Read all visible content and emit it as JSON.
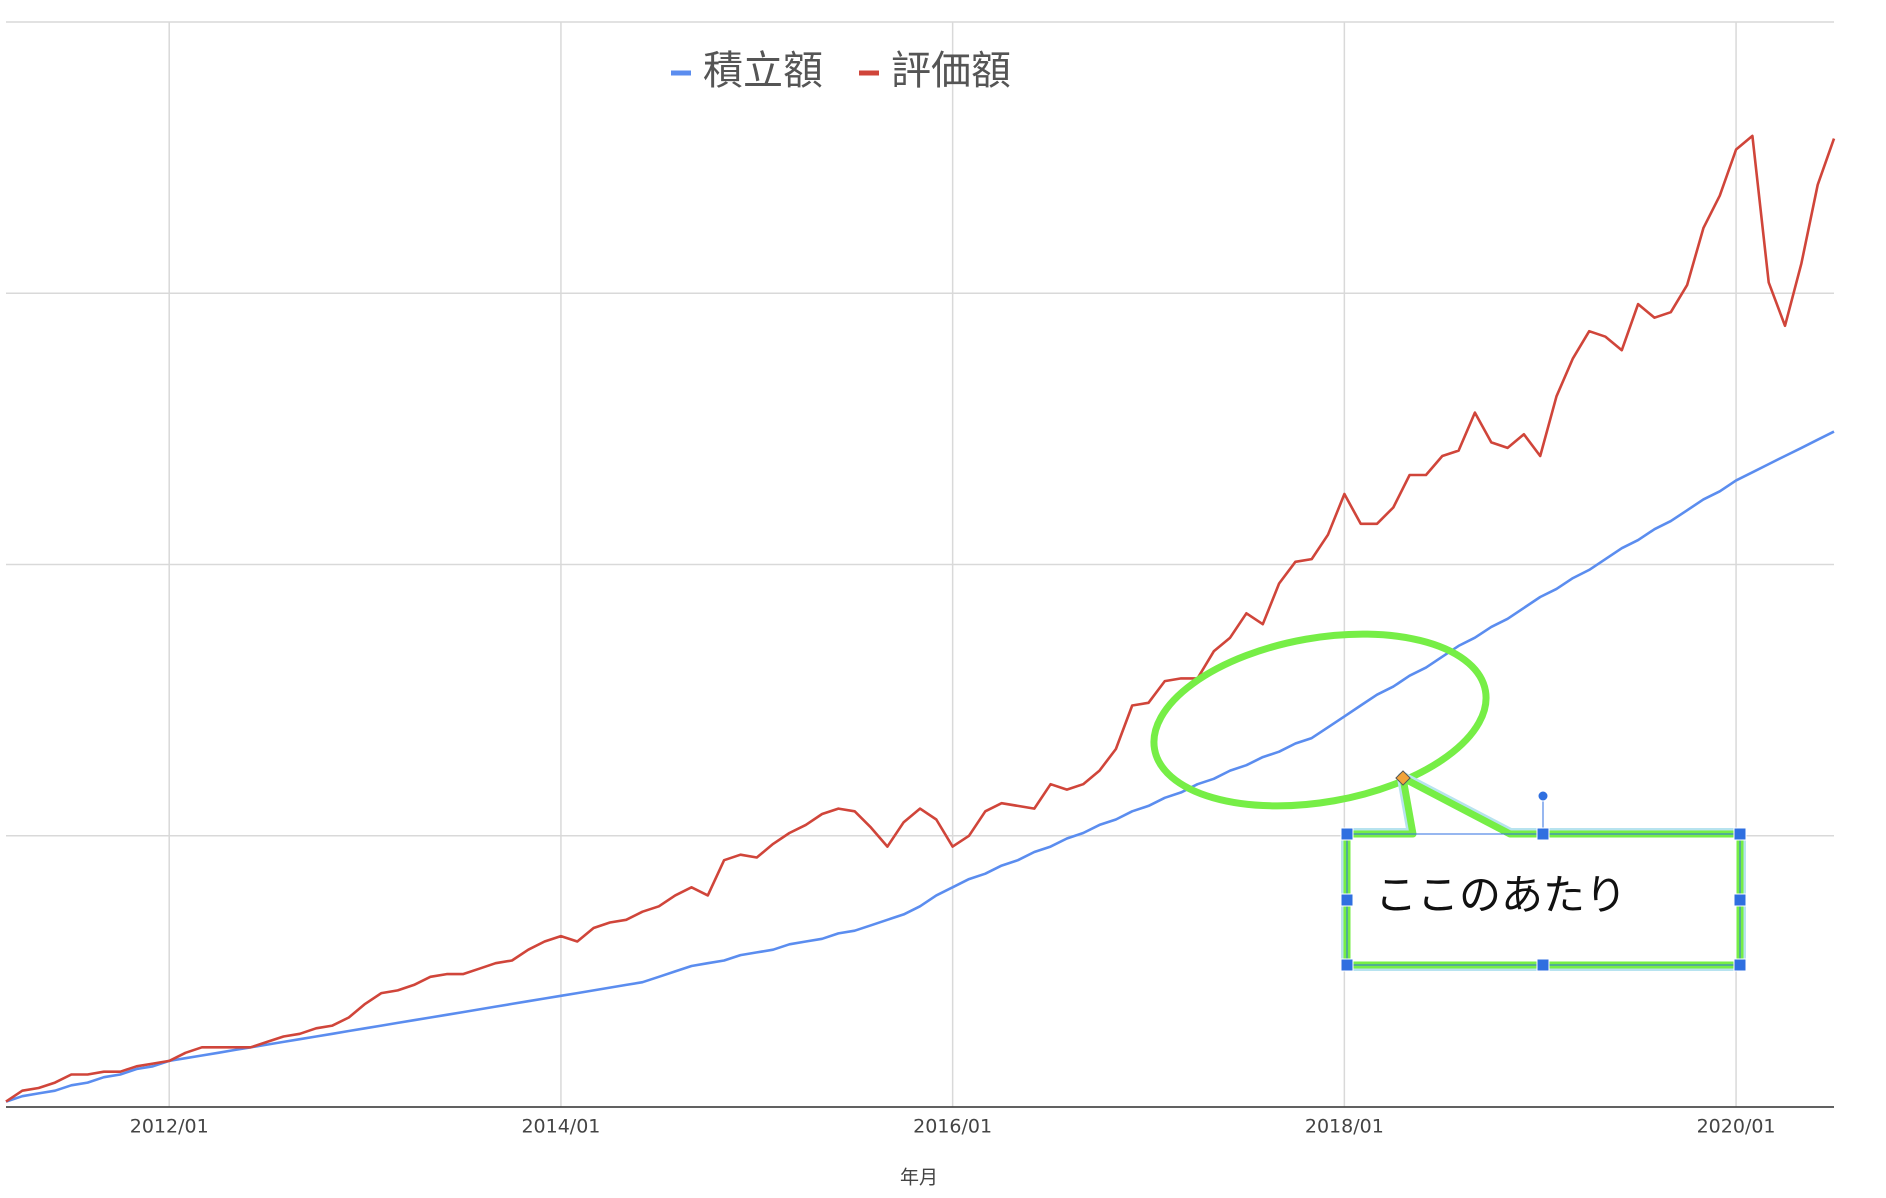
{
  "chart_data": {
    "type": "line",
    "x_label": "年月",
    "categories": [
      null,
      null,
      null,
      null,
      null,
      null,
      null,
      null,
      null,
      null,
      "2012/01",
      null,
      null,
      null,
      null,
      null,
      null,
      null,
      null,
      null,
      null,
      null,
      null,
      null,
      null,
      null,
      null,
      null,
      null,
      null,
      null,
      null,
      null,
      null,
      "2014/01",
      null,
      null,
      null,
      null,
      null,
      null,
      null,
      null,
      null,
      null,
      null,
      null,
      null,
      null,
      null,
      null,
      null,
      null,
      null,
      null,
      null,
      null,
      null,
      "2016/01",
      null,
      null,
      null,
      null,
      null,
      null,
      null,
      null,
      null,
      null,
      null,
      null,
      null,
      null,
      null,
      null,
      null,
      null,
      null,
      null,
      null,
      null,
      null,
      "2018/01",
      null,
      null,
      null,
      null,
      null,
      null,
      null,
      null,
      null,
      null,
      null,
      null,
      null,
      null,
      null,
      null,
      null,
      null,
      null,
      null,
      null,
      null,
      null,
      "2020/01",
      null,
      null,
      null,
      null,
      null,
      null
    ],
    "series": [
      {
        "name": "積立額",
        "color": "#5b8def",
        "values": [
          0.02,
          0.04,
          0.05,
          0.06,
          0.08,
          0.09,
          0.11,
          0.12,
          0.14,
          0.15,
          0.17,
          0.18,
          0.19,
          0.2,
          0.21,
          0.22,
          0.23,
          0.24,
          0.25,
          0.26,
          0.27,
          0.28,
          0.29,
          0.3,
          0.31,
          0.32,
          0.33,
          0.34,
          0.35,
          0.36,
          0.37,
          0.38,
          0.39,
          0.4,
          0.41,
          0.42,
          0.43,
          0.44,
          0.45,
          0.46,
          0.48,
          0.5,
          0.52,
          0.53,
          0.54,
          0.56,
          0.57,
          0.58,
          0.6,
          0.61,
          0.62,
          0.64,
          0.65,
          0.67,
          0.69,
          0.71,
          0.74,
          0.78,
          0.81,
          0.84,
          0.86,
          0.89,
          0.91,
          0.94,
          0.96,
          0.99,
          1.01,
          1.04,
          1.06,
          1.09,
          1.11,
          1.14,
          1.16,
          1.19,
          1.21,
          1.24,
          1.26,
          1.29,
          1.31,
          1.34,
          1.36,
          1.4,
          1.44,
          1.48,
          1.52,
          1.55,
          1.59,
          1.62,
          1.66,
          1.7,
          1.73,
          1.77,
          1.8,
          1.84,
          1.88,
          1.91,
          1.95,
          1.98,
          2.02,
          2.06,
          2.09,
          2.13,
          2.16,
          2.2,
          2.24,
          2.27,
          2.31,
          2.34,
          2.37,
          2.4,
          2.43,
          2.46,
          2.49
        ]
      },
      {
        "name": "評価額",
        "color": "#d0453a",
        "values": [
          0.02,
          0.06,
          0.07,
          0.09,
          0.12,
          0.12,
          0.13,
          0.13,
          0.15,
          0.16,
          0.17,
          0.2,
          0.22,
          0.22,
          0.22,
          0.22,
          0.24,
          0.26,
          0.27,
          0.29,
          0.3,
          0.33,
          0.38,
          0.42,
          0.43,
          0.45,
          0.48,
          0.49,
          0.49,
          0.51,
          0.53,
          0.54,
          0.58,
          0.61,
          0.63,
          0.61,
          0.66,
          0.68,
          0.69,
          0.72,
          0.74,
          0.78,
          0.81,
          0.78,
          0.91,
          0.93,
          0.92,
          0.97,
          1.01,
          1.04,
          1.08,
          1.1,
          1.09,
          1.03,
          0.96,
          1.05,
          1.1,
          1.06,
          0.96,
          1.0,
          1.09,
          1.12,
          1.11,
          1.1,
          1.19,
          1.17,
          1.19,
          1.24,
          1.32,
          1.48,
          1.49,
          1.57,
          1.58,
          1.58,
          1.68,
          1.73,
          1.82,
          1.78,
          1.93,
          2.01,
          2.02,
          2.11,
          2.26,
          2.15,
          2.15,
          2.21,
          2.33,
          2.33,
          2.4,
          2.42,
          2.56,
          2.45,
          2.43,
          2.48,
          2.4,
          2.62,
          2.76,
          2.86,
          2.84,
          2.79,
          2.96,
          2.91,
          2.93,
          3.03,
          3.24,
          3.36,
          3.53,
          3.58,
          3.04,
          2.88,
          3.11,
          3.4,
          3.57
        ]
      }
    ],
    "ylim": [
      0,
      4
    ],
    "yticks": [
      0,
      1,
      2,
      3,
      4
    ],
    "grid": true,
    "annotation": "ここのあたり"
  }
}
